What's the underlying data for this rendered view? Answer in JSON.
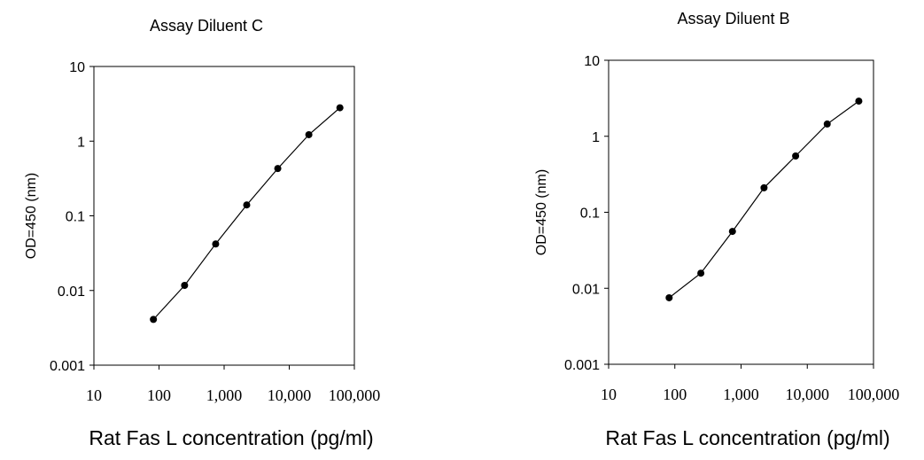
{
  "chart_data": [
    {
      "type": "line",
      "title": "Assay Diluent C",
      "xlabel": "Rat Fas L concentration (pg/ml)",
      "ylabel": "OD=450 (nm)",
      "x_scale": "log",
      "y_scale": "log",
      "xlim": [
        10,
        100000
      ],
      "ylim": [
        0.001,
        10
      ],
      "x_ticks": [
        10,
        100,
        1000,
        10000,
        100000
      ],
      "x_tick_labels": [
        "10",
        "100",
        "1,000",
        "10,000",
        "100,000"
      ],
      "y_ticks": [
        10,
        1,
        0.1,
        0.01,
        0.001
      ],
      "y_tick_labels": [
        "10",
        "1",
        "0.1",
        "0.01",
        "0.001"
      ],
      "grid": false,
      "series": [
        {
          "x": [
            82,
            247,
            741,
            2222,
            6667,
            20000,
            60000
          ],
          "y": [
            0.0041,
            0.0117,
            0.042,
            0.14,
            0.43,
            1.22,
            2.8
          ]
        }
      ]
    },
    {
      "type": "line",
      "title": "Assay Diluent B",
      "xlabel": "Rat Fas L concentration (pg/ml)",
      "ylabel": "OD=450 (nm)",
      "x_scale": "log",
      "y_scale": "log",
      "xlim": [
        10,
        100000
      ],
      "ylim": [
        0.001,
        10
      ],
      "x_ticks": [
        10,
        100,
        1000,
        10000,
        100000
      ],
      "x_tick_labels": [
        "10",
        "100",
        "1,000",
        "10,000",
        "100,000"
      ],
      "y_ticks": [
        10,
        1,
        0.1,
        0.01,
        0.001
      ],
      "y_tick_labels": [
        "10",
        "1",
        "0.1",
        "0.01",
        "0.001"
      ],
      "grid": false,
      "series": [
        {
          "x": [
            82,
            247,
            741,
            2222,
            6667,
            20000,
            60000
          ],
          "y": [
            0.0075,
            0.0158,
            0.056,
            0.21,
            0.55,
            1.45,
            2.9
          ]
        }
      ]
    }
  ]
}
